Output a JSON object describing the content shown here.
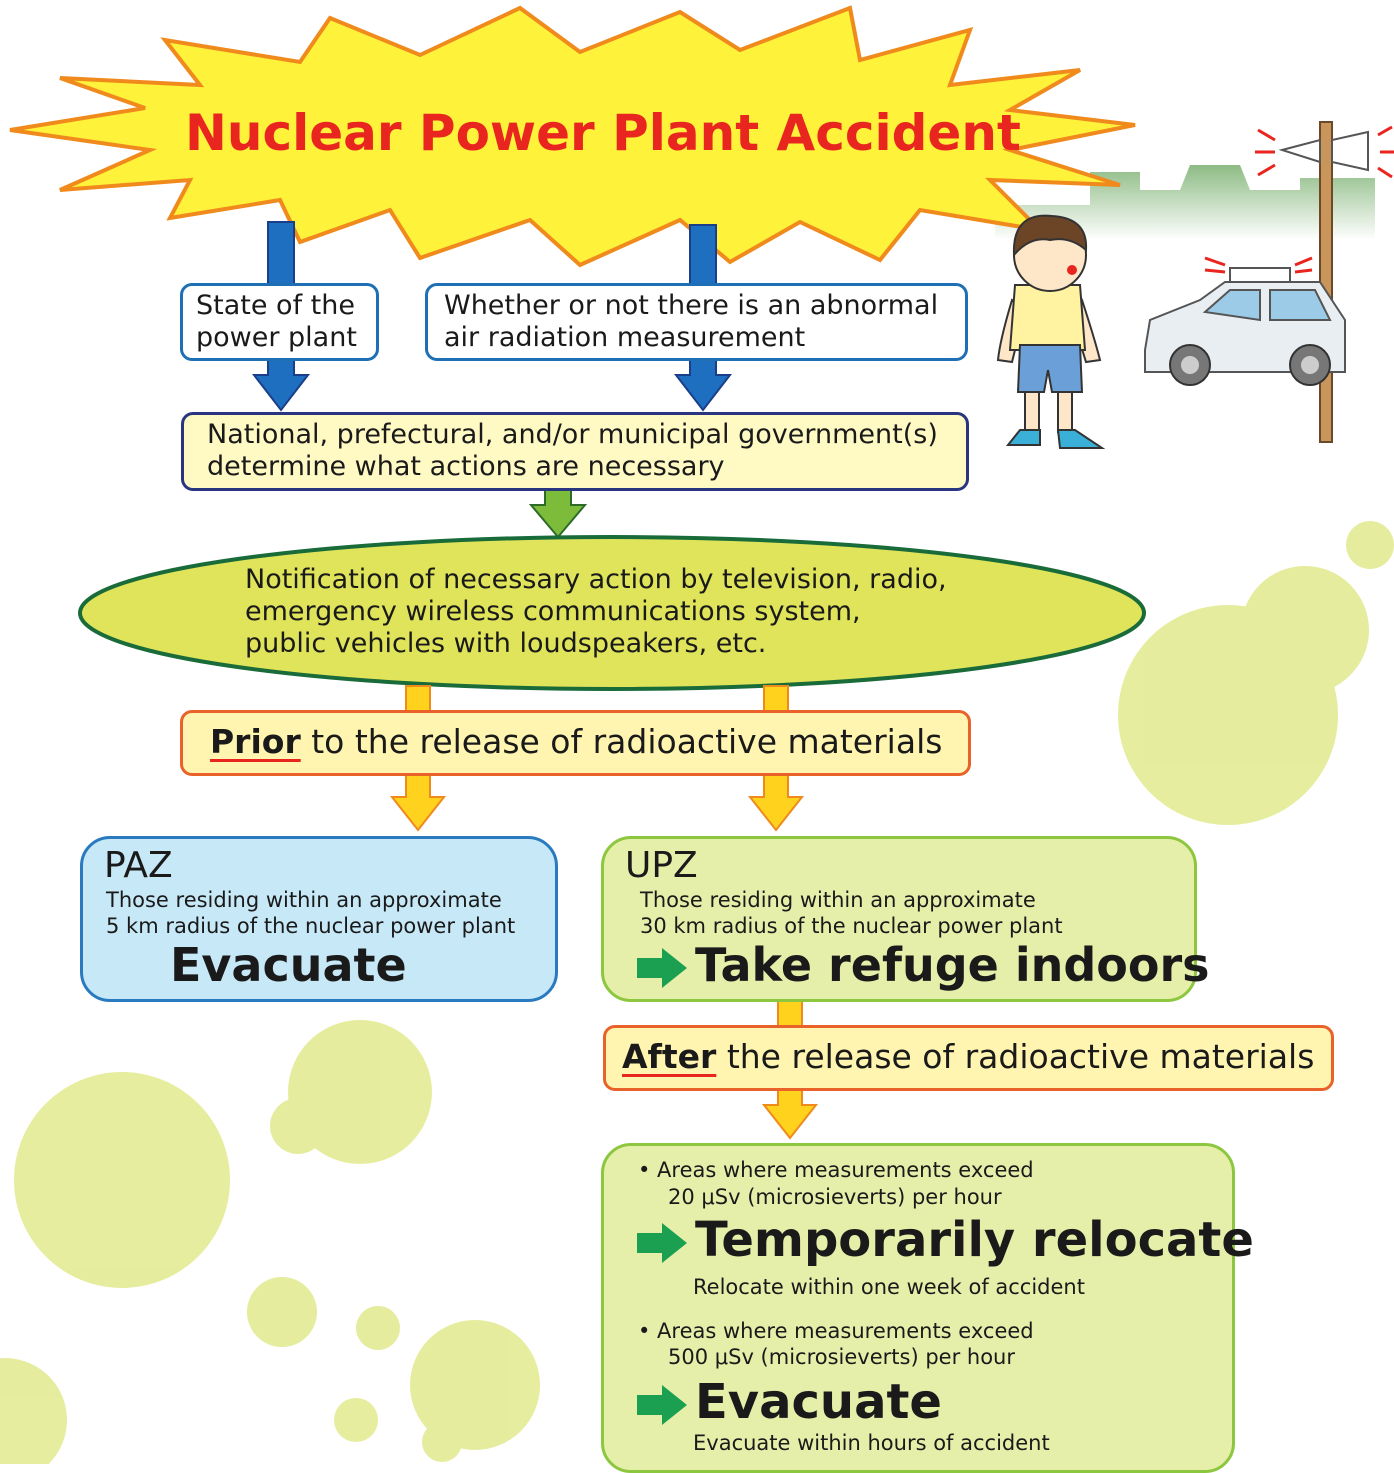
{
  "title": "Nuclear Power Plant Accident",
  "inputs": [
    {
      "lines": [
        "State of the",
        "power plant"
      ]
    },
    {
      "lines": [
        "Whether or not there is an abnormal",
        "air radiation measurement"
      ]
    }
  ],
  "decision": {
    "lines": [
      "National, prefectural, and/or municipal government(s)",
      "determine what actions are necessary"
    ]
  },
  "notification": {
    "lines": [
      "Notification of necessary action by television, radio,",
      "emergency wireless communications system,",
      "public vehicles with loudspeakers, etc."
    ]
  },
  "prior": {
    "emphasis": "Prior",
    "text": "to the release of radioactive materials"
  },
  "zones": [
    {
      "name": "PAZ",
      "lines": [
        "Those residing within an approximate",
        "5 km radius of the nuclear power plant"
      ],
      "action": "Evacuate"
    },
    {
      "name": "UPZ",
      "lines": [
        "Those residing within an approximate",
        "30 km radius of the nuclear power plant"
      ],
      "action": "Take refuge indoors"
    }
  ],
  "after": {
    "emphasis": "After",
    "text": "the release of radioactive materials"
  },
  "measures": [
    {
      "lines": [
        "• Areas where measurements exceed",
        "20 μSv (microsieverts) per hour"
      ],
      "action": "Temporarily relocate",
      "note": "Relocate within one week of accident"
    },
    {
      "lines": [
        "• Areas where measurements exceed",
        "500 μSv (microsieverts) per hour"
      ],
      "action": "Evacuate",
      "note": "Evacuate within hours of accident"
    }
  ]
}
